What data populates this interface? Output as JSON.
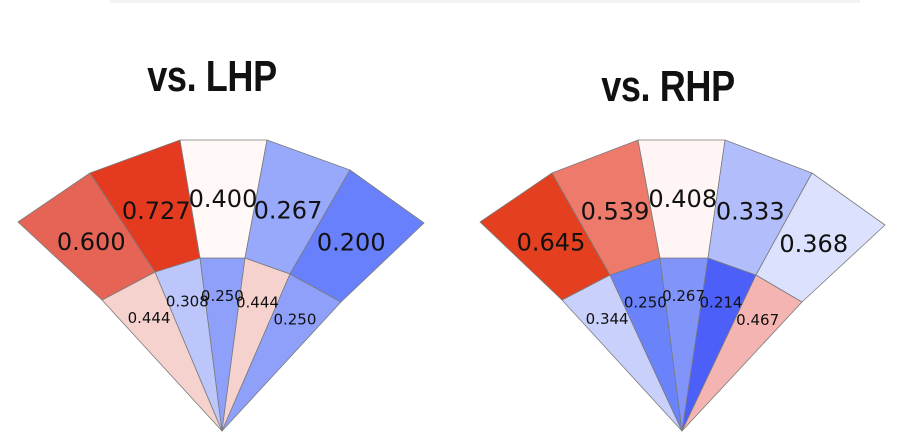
{
  "chart_data": [
    {
      "type": "spray-chart",
      "title": "vs. LHP",
      "outer_zones": [
        {
          "value": "0.600",
          "color": "#e66456"
        },
        {
          "value": "0.727",
          "color": "#e43a1f"
        },
        {
          "value": "0.400",
          "color": "#fff8f6"
        },
        {
          "value": "0.267",
          "color": "#98a8fb"
        },
        {
          "value": "0.200",
          "color": "#6880fb"
        }
      ],
      "inner_zones": [
        {
          "value": "0.444",
          "color": "#f6d2cf"
        },
        {
          "value": "0.308",
          "color": "#bcc6fb"
        },
        {
          "value": "0.250",
          "color": "#8ea0fa"
        },
        {
          "value": "0.444",
          "color": "#f6d2cf"
        },
        {
          "value": "0.250",
          "color": "#8ea0fa"
        }
      ]
    },
    {
      "type": "spray-chart",
      "title": "vs. RHP",
      "outer_zones": [
        {
          "value": "0.645",
          "color": "#e4401f"
        },
        {
          "value": "0.539",
          "color": "#ee7a6c"
        },
        {
          "value": "0.408",
          "color": "#fff5f5"
        },
        {
          "value": "0.333",
          "color": "#b2befb"
        },
        {
          "value": "0.368",
          "color": "#dce2fd"
        }
      ],
      "inner_zones": [
        {
          "value": "0.344",
          "color": "#c8d0fb"
        },
        {
          "value": "0.250",
          "color": "#6a82fa"
        },
        {
          "value": "0.267",
          "color": "#8194fa"
        },
        {
          "value": "0.214",
          "color": "#4c5ff8"
        },
        {
          "value": "0.467",
          "color": "#f3b4b2"
        }
      ]
    }
  ]
}
